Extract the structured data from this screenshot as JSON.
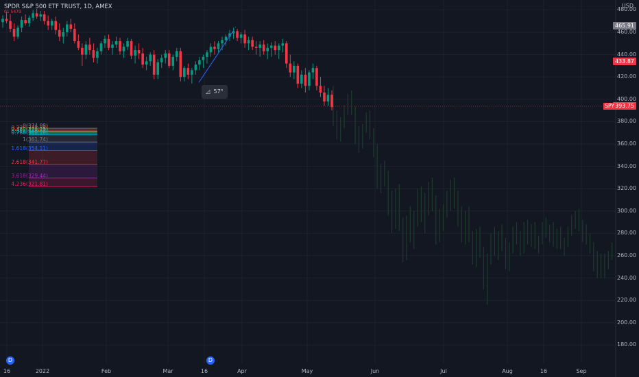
{
  "header": {
    "symbol_line": "SPDR S&P 500 ETF TRUST, 1D, AMEX",
    "sub_line": "01 5479"
  },
  "price_axis": {
    "currency": "USD",
    "ticks": [
      "480.00",
      "460.00",
      "440.00",
      "420.00",
      "400.00",
      "380.00",
      "360.00",
      "340.00",
      "320.00",
      "300.00",
      "280.00",
      "260.00",
      "240.00",
      "220.00",
      "200.00",
      "180.00"
    ],
    "tick_values": [
      480,
      460,
      440,
      420,
      400,
      380,
      360,
      340,
      320,
      300,
      280,
      260,
      240,
      220,
      200,
      180
    ]
  },
  "price_tags": {
    "high": "465.91",
    "mid": "433.87",
    "last": "393.75",
    "symbol": "SPY",
    "high_value": 465.91,
    "mid_value": 433.87,
    "last_value": 393.75,
    "high_color": "#787b86",
    "mid_color": "#f23645",
    "last_color": "#f23645"
  },
  "time_axis": {
    "labels": [
      "16",
      "2022",
      "Feb",
      "Mar",
      "16",
      "Apr",
      "May",
      "Jun",
      "Jul",
      "Aug",
      "16",
      "Sep"
    ]
  },
  "dividend_markers": [
    "D",
    "D"
  ],
  "angle_tool": {
    "label": "57°"
  },
  "fib_levels": [
    {
      "label": "0(374.08)",
      "color": "#787b86",
      "value": 374.08
    },
    {
      "label": "0.236(372.31)",
      "color": "#f23645",
      "value": 372.31
    },
    {
      "label": "0.382(371.25)",
      "color": "#ff9800",
      "value": 371.25
    },
    {
      "label": "0.5(370.33)",
      "color": "#4caf50",
      "value": 370.33
    },
    {
      "label": "0.618(369.45)",
      "color": "#089981",
      "value": 369.45
    },
    {
      "label": "0.786(368.18)",
      "color": "#00bcd4",
      "value": 368.18
    },
    {
      "label": "1(361.74)",
      "color": "#787b86",
      "value": 361.74
    },
    {
      "label": "1.618(354.11)",
      "color": "#2962ff",
      "value": 354.11
    },
    {
      "label": "2.618(341.77)",
      "color": "#f23645",
      "value": 341.77
    },
    {
      "label": "3.618(329.44)",
      "color": "#9c27b0",
      "value": 329.44
    },
    {
      "label": "4.236(321.81)",
      "color": "#e91e63",
      "value": 321.81
    }
  ],
  "colors": {
    "up": "#089981",
    "down": "#f23645",
    "ghost": "#1e3b2c",
    "background": "#131722",
    "grid": "#1e222d"
  },
  "candles": [
    [
      469,
      475,
      464,
      472
    ],
    [
      472,
      478,
      468,
      470
    ],
    [
      470,
      476,
      460,
      463
    ],
    [
      463,
      468,
      452,
      456
    ],
    [
      456,
      466,
      454,
      464
    ],
    [
      464,
      474,
      460,
      471
    ],
    [
      471,
      476,
      466,
      468
    ],
    [
      468,
      475,
      465,
      473
    ],
    [
      473,
      480,
      470,
      477
    ],
    [
      477,
      481,
      472,
      474
    ],
    [
      474,
      479,
      470,
      476
    ],
    [
      476,
      479,
      467,
      470
    ],
    [
      470,
      475,
      462,
      466
    ],
    [
      466,
      472,
      462,
      470
    ],
    [
      470,
      474,
      458,
      462
    ],
    [
      462,
      468,
      452,
      456
    ],
    [
      456,
      464,
      450,
      460
    ],
    [
      460,
      470,
      456,
      467
    ],
    [
      467,
      472,
      460,
      463
    ],
    [
      463,
      468,
      450,
      452
    ],
    [
      452,
      458,
      444,
      446
    ],
    [
      446,
      450,
      430,
      440
    ],
    [
      440,
      452,
      436,
      449
    ],
    [
      449,
      455,
      440,
      444
    ],
    [
      444,
      450,
      433,
      437
    ],
    [
      437,
      446,
      432,
      443
    ],
    [
      443,
      452,
      440,
      450
    ],
    [
      450,
      457,
      446,
      454
    ],
    [
      454,
      458,
      444,
      446
    ],
    [
      446,
      452,
      440,
      449
    ],
    [
      449,
      456,
      446,
      452
    ],
    [
      452,
      455,
      440,
      443
    ],
    [
      443,
      450,
      437,
      447
    ],
    [
      447,
      455,
      444,
      452
    ],
    [
      452,
      454,
      436,
      439
    ],
    [
      439,
      448,
      432,
      444
    ],
    [
      444,
      450,
      436,
      441
    ],
    [
      441,
      446,
      428,
      431
    ],
    [
      431,
      438,
      426,
      434
    ],
    [
      434,
      442,
      430,
      440
    ],
    [
      440,
      444,
      418,
      422
    ],
    [
      422,
      436,
      418,
      433
    ],
    [
      433,
      440,
      428,
      437
    ],
    [
      437,
      444,
      432,
      441
    ],
    [
      441,
      444,
      428,
      430
    ],
    [
      430,
      440,
      426,
      438
    ],
    [
      438,
      446,
      434,
      443
    ],
    [
      443,
      446,
      416,
      420
    ],
    [
      420,
      430,
      416,
      428
    ],
    [
      428,
      432,
      418,
      422
    ],
    [
      422,
      428,
      414,
      426
    ],
    [
      426,
      434,
      422,
      431
    ],
    [
      431,
      438,
      426,
      435
    ],
    [
      435,
      440,
      428,
      438
    ],
    [
      438,
      444,
      432,
      442
    ],
    [
      442,
      450,
      438,
      447
    ],
    [
      447,
      452,
      440,
      445
    ],
    [
      445,
      452,
      442,
      450
    ],
    [
      450,
      456,
      444,
      453
    ],
    [
      453,
      458,
      448,
      456
    ],
    [
      456,
      462,
      452,
      459
    ],
    [
      459,
      464,
      454,
      461
    ],
    [
      461,
      463,
      452,
      455
    ],
    [
      455,
      460,
      450,
      458
    ],
    [
      458,
      462,
      446,
      450
    ],
    [
      450,
      456,
      444,
      453
    ],
    [
      453,
      456,
      444,
      447
    ],
    [
      447,
      452,
      440,
      446
    ],
    [
      446,
      452,
      438,
      449
    ],
    [
      449,
      453,
      440,
      443
    ],
    [
      443,
      450,
      436,
      446
    ],
    [
      446,
      451,
      438,
      448
    ],
    [
      448,
      452,
      440,
      444
    ],
    [
      444,
      450,
      436,
      448
    ],
    [
      448,
      454,
      442,
      450
    ],
    [
      450,
      452,
      428,
      432
    ],
    [
      432,
      440,
      420,
      424
    ],
    [
      424,
      434,
      418,
      430
    ],
    [
      430,
      432,
      410,
      414
    ],
    [
      414,
      426,
      410,
      422
    ],
    [
      422,
      428,
      406,
      412
    ],
    [
      412,
      426,
      408,
      424
    ],
    [
      424,
      432,
      418,
      428
    ],
    [
      428,
      430,
      408,
      412
    ],
    [
      412,
      420,
      402,
      406
    ],
    [
      406,
      412,
      394,
      398
    ],
    [
      398,
      410,
      394,
      404
    ],
    [
      404,
      408,
      390,
      393
    ]
  ],
  "ghost_candles": [
    [
      393,
      412,
      376,
      380
    ],
    [
      380,
      390,
      364,
      368
    ],
    [
      368,
      384,
      362,
      380
    ],
    [
      380,
      395,
      374,
      390
    ],
    [
      390,
      405,
      386,
      401
    ],
    [
      401,
      408,
      386,
      390
    ],
    [
      390,
      394,
      360,
      366
    ],
    [
      366,
      376,
      352,
      360
    ],
    [
      360,
      378,
      356,
      376
    ],
    [
      376,
      388,
      370,
      384
    ],
    [
      384,
      390,
      364,
      368
    ],
    [
      368,
      374,
      348,
      352
    ],
    [
      352,
      360,
      320,
      330
    ],
    [
      330,
      342,
      316,
      338
    ],
    [
      338,
      345,
      322,
      326
    ],
    [
      326,
      336,
      296,
      302
    ],
    [
      302,
      318,
      280,
      290
    ],
    [
      290,
      320,
      284,
      316
    ],
    [
      316,
      324,
      282,
      286
    ],
    [
      286,
      294,
      254,
      262
    ],
    [
      262,
      296,
      256,
      290
    ],
    [
      290,
      304,
      272,
      280
    ],
    [
      280,
      300,
      266,
      294
    ],
    [
      294,
      320,
      286,
      314
    ],
    [
      314,
      322,
      290,
      296
    ],
    [
      296,
      316,
      280,
      310
    ],
    [
      310,
      326,
      296,
      320
    ],
    [
      320,
      330,
      300,
      306
    ],
    [
      306,
      314,
      270,
      278
    ],
    [
      278,
      302,
      272,
      296
    ],
    [
      296,
      306,
      282,
      300
    ],
    [
      300,
      318,
      294,
      312
    ],
    [
      312,
      328,
      300,
      322
    ],
    [
      322,
      330,
      302,
      308
    ],
    [
      308,
      318,
      286,
      290
    ],
    [
      290,
      304,
      272,
      278
    ],
    [
      278,
      300,
      270,
      296
    ],
    [
      296,
      304,
      272,
      276
    ],
    [
      276,
      282,
      252,
      256
    ],
    [
      256,
      284,
      250,
      280
    ],
    [
      280,
      286,
      258,
      262
    ],
    [
      262,
      268,
      230,
      238
    ],
    [
      238,
      262,
      216,
      258
    ],
    [
      258,
      280,
      252,
      274
    ],
    [
      274,
      286,
      260,
      266
    ],
    [
      266,
      282,
      256,
      278
    ],
    [
      278,
      288,
      264,
      272
    ],
    [
      272,
      276,
      248,
      252
    ],
    [
      252,
      272,
      246,
      268
    ],
    [
      268,
      286,
      262,
      282
    ],
    [
      282,
      290,
      270,
      276
    ],
    [
      276,
      282,
      260,
      266
    ],
    [
      266,
      290,
      262,
      286
    ],
    [
      286,
      292,
      270,
      274
    ],
    [
      274,
      288,
      268,
      284
    ],
    [
      284,
      290,
      266,
      270
    ],
    [
      270,
      278,
      262,
      274
    ],
    [
      274,
      290,
      270,
      286
    ],
    [
      286,
      294,
      276,
      280
    ],
    [
      280,
      288,
      272,
      284
    ],
    [
      284,
      290,
      268,
      272
    ],
    [
      272,
      284,
      266,
      280
    ],
    [
      280,
      286,
      266,
      270
    ],
    [
      270,
      276,
      260,
      272
    ],
    [
      272,
      286,
      268,
      282
    ],
    [
      282,
      296,
      278,
      292
    ],
    [
      292,
      300,
      284,
      296
    ],
    [
      296,
      302,
      282,
      286
    ],
    [
      286,
      292,
      272,
      280
    ],
    [
      280,
      288,
      270,
      276
    ],
    [
      276,
      280,
      262,
      266
    ],
    [
      266,
      272,
      246,
      252
    ],
    [
      252,
      264,
      240,
      258
    ],
    [
      258,
      262,
      240,
      244
    ],
    [
      244,
      262,
      240,
      258
    ],
    [
      258,
      264,
      248,
      262
    ],
    [
      262,
      272,
      256,
      268
    ]
  ]
}
